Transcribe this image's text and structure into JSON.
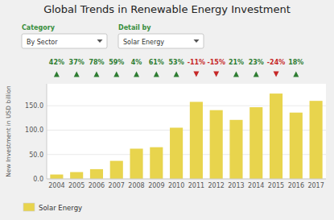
{
  "chart_data": {
    "type": "bar",
    "title": "Global Trends in Renewable Energy Investment",
    "categories": [
      "2004",
      "2005",
      "2006",
      "2007",
      "2008",
      "2009",
      "2010",
      "2011",
      "2012",
      "2013",
      "2014",
      "2015",
      "2016",
      "2017"
    ],
    "series": [
      {
        "name": "Solar Energy",
        "color": "#E8D44D",
        "values": [
          9,
          14,
          20,
          37,
          62,
          65,
          105,
          158,
          141,
          121,
          147,
          175,
          136,
          160
        ]
      }
    ],
    "y_label": "New Investment in USD billion",
    "ylim": [
      0,
      195
    ],
    "yticks": [
      {
        "value": 0,
        "label": "0.0"
      },
      {
        "value": 50,
        "label": "50.0"
      },
      {
        "value": 100,
        "label": "100.0"
      },
      {
        "value": 150,
        "label": "150.0"
      }
    ],
    "grid": true,
    "legend": "bottom",
    "changes": {
      "values": [
        42,
        37,
        78,
        59,
        4,
        61,
        53,
        -11,
        -15,
        21,
        23,
        -24,
        18
      ],
      "value_labels": [
        "42%",
        "37%",
        "78%",
        "59%",
        "4%",
        "61%",
        "53%",
        "-11%",
        "-15%",
        "21%",
        "23%",
        "-24%",
        "18%"
      ],
      "colors": [
        "#2E7D32",
        "#2E7D32",
        "#2E7D32",
        "#2E7D32",
        "#2E7D32",
        "#2E7D32",
        "#2E7D32",
        "#C62828",
        "#C62828",
        "#2E7D32",
        "#2E7D32",
        "#C62828",
        "#2E7D32"
      ]
    },
    "annotations": [
      "Category",
      "By Sector",
      "Detail by",
      "Solar Energy"
    ]
  }
}
